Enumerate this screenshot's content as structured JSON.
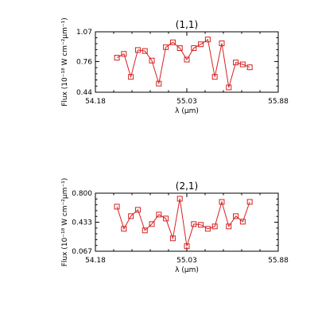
{
  "chart_data": [
    {
      "type": "line",
      "title": "(1,1)",
      "xlabel": "λ (μm)",
      "ylabel": "Flux (10⁻¹⁸ W cm⁻²μm⁻¹)",
      "xlim": [
        54.18,
        55.88
      ],
      "ylim": [
        0.44,
        1.07
      ],
      "xticks": [
        "54.18",
        "55.03",
        "55.88"
      ],
      "yticks": [
        "0.44",
        "0.76",
        "1.07"
      ],
      "marker": "open-square",
      "color": "#d62020",
      "x": [
        54.38,
        54.445,
        54.51,
        54.575,
        54.64,
        54.705,
        54.77,
        54.835,
        54.9,
        54.965,
        55.03,
        55.095,
        55.16,
        55.225,
        55.29,
        55.355,
        55.42,
        55.485,
        55.55,
        55.615
      ],
      "y": [
        0.8,
        0.84,
        0.6,
        0.88,
        0.87,
        0.77,
        0.53,
        0.91,
        0.96,
        0.9,
        0.78,
        0.9,
        0.94,
        0.99,
        0.6,
        0.95,
        0.49,
        0.75,
        0.73,
        0.7
      ]
    },
    {
      "type": "line",
      "title": "(2,1)",
      "xlabel": "λ (μm)",
      "ylabel": "Flux (10⁻¹⁸ W cm⁻²μm⁻¹)",
      "xlim": [
        54.18,
        55.88
      ],
      "ylim": [
        0.067,
        0.8
      ],
      "xticks": [
        "54.18",
        "55.03",
        "55.88"
      ],
      "yticks": [
        "0.067",
        "0.433",
        "0.800"
      ],
      "marker": "open-square",
      "color": "#d62020",
      "x": [
        54.38,
        54.445,
        54.51,
        54.575,
        54.64,
        54.705,
        54.77,
        54.835,
        54.9,
        54.965,
        55.03,
        55.095,
        55.16,
        55.225,
        55.29,
        55.355,
        55.42,
        55.485,
        55.55,
        55.615
      ],
      "y": [
        0.63,
        0.35,
        0.51,
        0.59,
        0.33,
        0.41,
        0.53,
        0.48,
        0.23,
        0.73,
        0.13,
        0.41,
        0.4,
        0.35,
        0.38,
        0.69,
        0.38,
        0.51,
        0.44,
        0.69
      ]
    }
  ]
}
